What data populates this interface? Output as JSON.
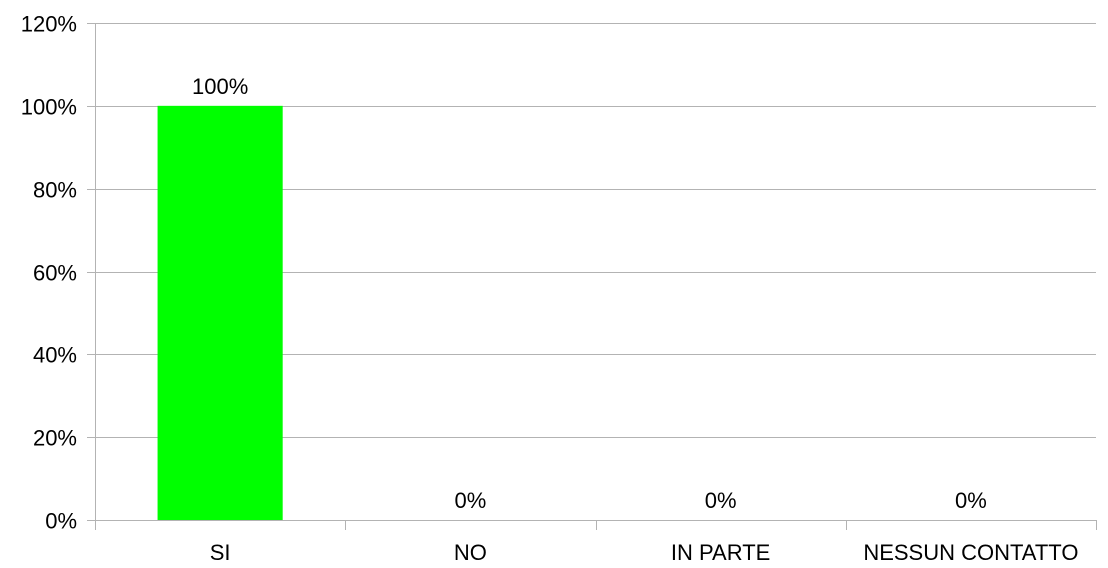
{
  "chart_data": {
    "type": "bar",
    "categories": [
      "SI",
      "NO",
      "IN PARTE",
      "NESSUN CONTATTO"
    ],
    "values": [
      100,
      0,
      0,
      0
    ],
    "data_labels": [
      "100%",
      "0%",
      "0%",
      "0%"
    ],
    "ylim": [
      0,
      120
    ],
    "yticks": [
      0,
      20,
      40,
      60,
      80,
      100,
      120
    ],
    "ytick_labels": [
      "0%",
      "20%",
      "40%",
      "60%",
      "80%",
      "100%",
      "120%"
    ],
    "grid": true,
    "legend": "none",
    "bar_color": "#00ff00",
    "grid_color": "#b3b3b3",
    "axis_color": "#b3b3b3"
  }
}
